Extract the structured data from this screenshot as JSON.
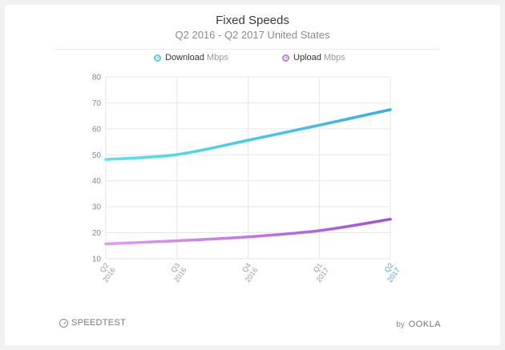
{
  "footer": {
    "brand_left": "SPEEDTEST",
    "by_label": "by",
    "brand_right": "OOKLA"
  },
  "colors": {
    "download_start": "#56e6ea",
    "download_end": "#3aaee0",
    "upload_start": "#e39cf2",
    "upload_end": "#9e52d6",
    "highlight_tick": "#3aa9e0"
  },
  "chart_data": {
    "type": "line",
    "title": "Fixed Speeds",
    "subtitle": "Q2 2016 - Q2 2017 United States",
    "categories": [
      "Q2 2016",
      "Q3 2016",
      "Q4 2016",
      "Q1 2017",
      "Q2 2017"
    ],
    "category_lines": [
      [
        "Q2",
        "2016"
      ],
      [
        "Q3",
        "2016"
      ],
      [
        "Q4",
        "2016"
      ],
      [
        "Q1",
        "2017"
      ],
      [
        "Q2",
        "2017"
      ]
    ],
    "highlight_category": "Q2 2017",
    "ylim": [
      10,
      80
    ],
    "yticks": [
      10,
      20,
      30,
      40,
      50,
      60,
      70,
      80
    ],
    "grid": true,
    "legend_position": "top",
    "unit": "Mbps",
    "series": [
      {
        "name": "Download",
        "values": [
          48.2,
          50.1,
          55.6,
          61.4,
          67.4
        ]
      },
      {
        "name": "Upload",
        "values": [
          15.7,
          16.9,
          18.4,
          20.8,
          25.2
        ]
      }
    ]
  }
}
